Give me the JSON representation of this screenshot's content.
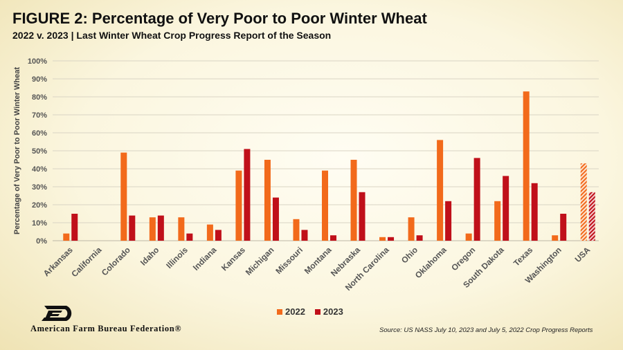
{
  "header": {
    "title": "FIGURE 2: Percentage of Very Poor to Poor Winter Wheat",
    "subtitle": "2022 v. 2023 | Last Winter Wheat Crop Progress Report of the Season"
  },
  "footer": {
    "org_name": "American Farm Bureau Federation®",
    "source": "Source: US NASS July 10, 2023 and July 5, 2022 Crop Progress Reports"
  },
  "colors": {
    "series_2022": "#f26a1b",
    "series_2023": "#c0101a",
    "grid": "#d9d4c4",
    "logo": "#111111"
  },
  "chart_data": {
    "type": "bar",
    "title": "FIGURE 2: Percentage of Very Poor to Poor Winter Wheat",
    "subtitle": "2022 v. 2023 | Last Winter Wheat Crop Progress Report of the Season",
    "xlabel": "",
    "ylabel": "Percentage of Very Poor to Poor Winter Wheat",
    "ylim": [
      0,
      100
    ],
    "yticks": [
      "0%",
      "10%",
      "20%",
      "30%",
      "40%",
      "50%",
      "60%",
      "70%",
      "80%",
      "90%",
      "100%"
    ],
    "grid": true,
    "legend_position": "bottom-center",
    "categories": [
      "Arkansas",
      "California",
      "Colorado",
      "Idaho",
      "Illinois",
      "Indiana",
      "Kansas",
      "Michigan",
      "Missouri",
      "Montana",
      "Nebraska",
      "North Carolina",
      "Ohio",
      "Oklahoma",
      "Oregon",
      "South Dakota",
      "Texas",
      "Washington",
      "USA"
    ],
    "hatched_category": "USA",
    "series": [
      {
        "name": "2022",
        "values": [
          4,
          0,
          49,
          13,
          13,
          9,
          39,
          45,
          12,
          39,
          45,
          2,
          13,
          56,
          4,
          22,
          83,
          3,
          43
        ]
      },
      {
        "name": "2023",
        "values": [
          15,
          0,
          14,
          14,
          4,
          6,
          51,
          24,
          6,
          3,
          27,
          2,
          3,
          22,
          46,
          36,
          32,
          15,
          27
        ]
      }
    ]
  }
}
